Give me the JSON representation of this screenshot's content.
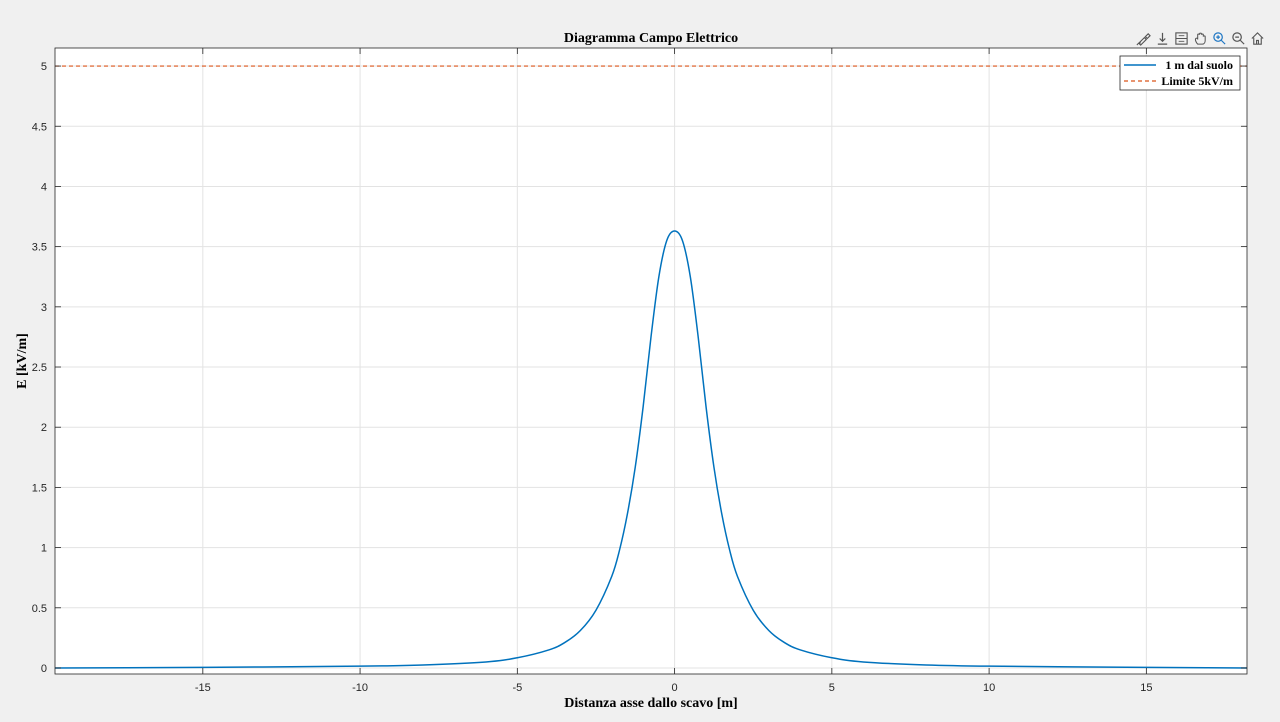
{
  "toolbar": {
    "icons": [
      "brush-icon",
      "export-icon",
      "datatip-icon",
      "pan-icon",
      "zoom-in-icon",
      "zoom-out-icon",
      "home-icon"
    ]
  },
  "chart_data": {
    "type": "line",
    "title": "Diagramma Campo Elettrico",
    "xlabel": "Distanza asse dallo scavo [m]",
    "ylabel": "E [kV/m]",
    "xlim": [
      -19.7,
      18.2
    ],
    "ylim": [
      -0.05,
      5.15
    ],
    "xticks": [
      -15,
      -10,
      -5,
      0,
      5,
      10,
      15
    ],
    "xtick_labels": [
      "-15",
      "-10",
      "-5",
      "0",
      "5",
      "10",
      "15"
    ],
    "yticks": [
      0,
      0.5,
      1,
      1.5,
      2,
      2.5,
      3,
      3.5,
      4,
      4.5,
      5
    ],
    "ytick_labels": [
      "0",
      "0.5",
      "1",
      "1.5",
      "2",
      "2.5",
      "3",
      "3.5",
      "4",
      "4.5",
      "5"
    ],
    "grid": true,
    "legend_position": "top-right",
    "series": [
      {
        "name": "1 m dal suolo",
        "style": "solid",
        "color": "#0072BD",
        "x": [
          -19.7,
          -15,
          -10,
          -8,
          -6,
          -5,
          -4,
          -3.5,
          -3,
          -2.5,
          -2,
          -1.75,
          -1.5,
          -1.25,
          -1,
          -0.75,
          -0.5,
          -0.25,
          0,
          0.25,
          0.5,
          0.75,
          1,
          1.25,
          1.5,
          1.75,
          2,
          2.5,
          3,
          3.5,
          4,
          5,
          6,
          8,
          10,
          15,
          18.2
        ],
        "y": [
          0.0,
          0.005,
          0.015,
          0.025,
          0.05,
          0.085,
          0.15,
          0.21,
          0.31,
          0.48,
          0.76,
          0.98,
          1.28,
          1.67,
          2.17,
          2.75,
          3.25,
          3.55,
          3.63,
          3.55,
          3.25,
          2.75,
          2.17,
          1.67,
          1.28,
          0.98,
          0.76,
          0.48,
          0.31,
          0.21,
          0.15,
          0.085,
          0.05,
          0.025,
          0.015,
          0.005,
          0.0
        ]
      },
      {
        "name": "Limite 5kV/m",
        "style": "dashed",
        "color": "#D95319",
        "x": [
          -19.7,
          18.2
        ],
        "y": [
          5,
          5
        ]
      }
    ]
  }
}
